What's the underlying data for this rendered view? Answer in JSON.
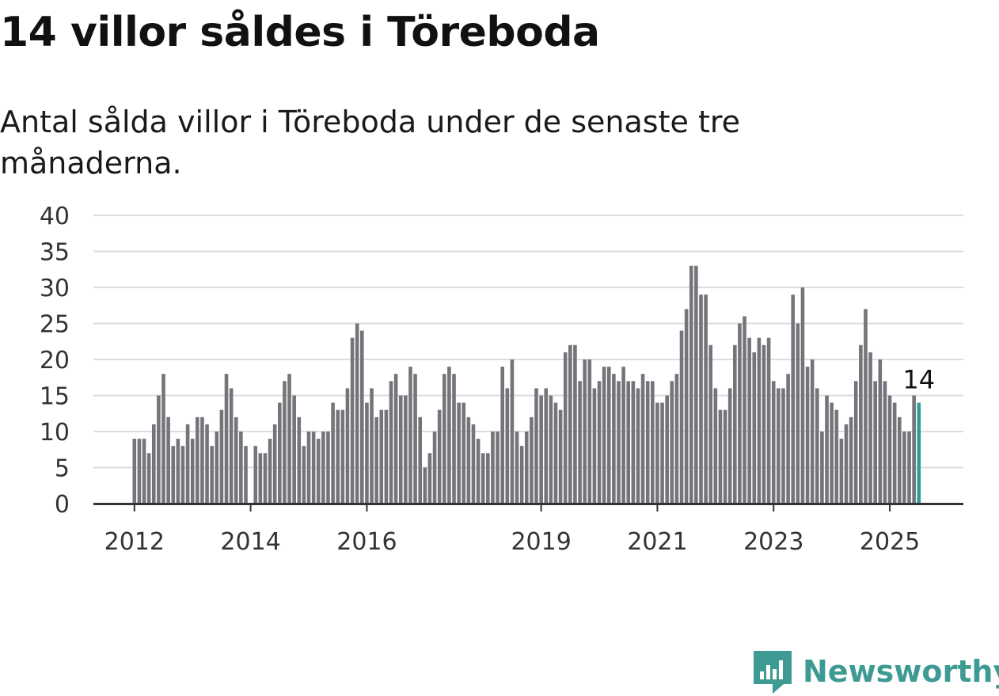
{
  "title": "14 villor såldes i Töreboda",
  "subtitle": "Antal sålda villor i Töreboda under de senaste tre månaderna.",
  "brand": "Newsworthy",
  "colors": {
    "bar": "#75747a",
    "highlight": "#2a9d96",
    "grid": "#dddddd",
    "axis": "#333333",
    "brand": "#3e9b93"
  },
  "chart_data": {
    "type": "bar",
    "title": "14 villor såldes i Töreboda",
    "subtitle": "Antal sålda villor i Töreboda under de senaste tre månaderna.",
    "xlabel": "",
    "ylabel": "",
    "ylim": [
      0,
      40
    ],
    "yticks": [
      0,
      5,
      10,
      15,
      20,
      25,
      30,
      35,
      40
    ],
    "xticks": [
      "2012",
      "2014",
      "2016",
      "2019",
      "2021",
      "2023",
      "2025"
    ],
    "grid": true,
    "highlight_label": "14",
    "highlight_index": 162,
    "start": "2012-01",
    "values": [
      9,
      9,
      9,
      7,
      11,
      15,
      18,
      12,
      8,
      9,
      8,
      11,
      9,
      12,
      12,
      11,
      8,
      10,
      13,
      18,
      16,
      12,
      10,
      8,
      null,
      8,
      7,
      7,
      9,
      11,
      14,
      17,
      18,
      15,
      12,
      8,
      10,
      10,
      9,
      10,
      10,
      14,
      13,
      13,
      16,
      23,
      25,
      24,
      14,
      16,
      12,
      13,
      13,
      17,
      18,
      15,
      15,
      19,
      18,
      12,
      5,
      7,
      10,
      13,
      18,
      19,
      18,
      14,
      14,
      12,
      11,
      9,
      7,
      7,
      10,
      10,
      19,
      16,
      20,
      10,
      8,
      10,
      12,
      16,
      15,
      16,
      15,
      14,
      13,
      21,
      22,
      22,
      17,
      20,
      20,
      16,
      17,
      19,
      19,
      18,
      17,
      19,
      17,
      17,
      16,
      18,
      17,
      17,
      14,
      14,
      15,
      17,
      18,
      24,
      27,
      33,
      33,
      29,
      29,
      22,
      16,
      13,
      13,
      16,
      22,
      25,
      26,
      23,
      21,
      23,
      22,
      23,
      17,
      16,
      16,
      18,
      29,
      25,
      30,
      19,
      20,
      16,
      10,
      15,
      14,
      13,
      9,
      11,
      12,
      17,
      22,
      27,
      21,
      17,
      20,
      17,
      15,
      14,
      12,
      10,
      10,
      15,
      14
    ]
  }
}
